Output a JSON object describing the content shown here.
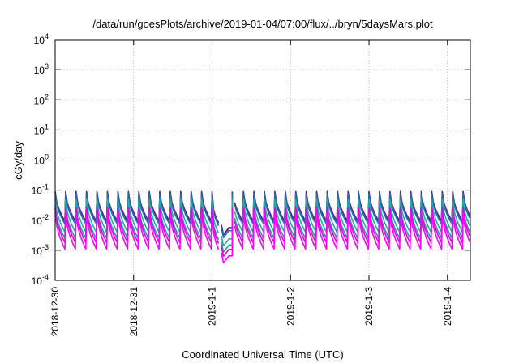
{
  "chart_data": {
    "type": "line",
    "title": "/data/run/goesPlots/archive/2019-01-04/07:00/flux/../bryn/5daysMars.plot",
    "xlabel": "Coordinated Universal Time (UTC)",
    "ylabel": "cGy/day",
    "yscale": "log",
    "ylim": [
      0.0001,
      10000
    ],
    "yticks": [
      {
        "base": "10",
        "exp": "4"
      },
      {
        "base": "10",
        "exp": "3"
      },
      {
        "base": "10",
        "exp": "2"
      },
      {
        "base": "10",
        "exp": "1"
      },
      {
        "base": "10",
        "exp": "0"
      },
      {
        "base": "10",
        "exp": "-1"
      },
      {
        "base": "10",
        "exp": "-2"
      },
      {
        "base": "10",
        "exp": "-3"
      },
      {
        "base": "10",
        "exp": "-4"
      }
    ],
    "xlim": [
      "2018-12-30",
      "2019-01-04 07:00"
    ],
    "xticks": [
      "2018-12-30",
      "2018-12-31",
      "2019-1-1",
      "2019-1-2",
      "2019-1-3",
      "2019-1-4"
    ],
    "grid": true,
    "legend": "none",
    "pattern": {
      "period_hours": 3.2,
      "gap": {
        "start": "2019-01-01 02:20",
        "end": "2019-01-01 06:40"
      }
    },
    "series": [
      {
        "color": "#cc0000",
        "peak": 0.09,
        "trough": 0.0095
      },
      {
        "color": "#3a3aa8",
        "peak": 0.085,
        "trough": 0.009
      },
      {
        "color": "#1f6fb4",
        "peak": 0.075,
        "trough": 0.0075
      },
      {
        "color": "#2aa9a3",
        "peak": 0.05,
        "trough": 0.004
      },
      {
        "color": "#1c9fa7",
        "peak": 0.03,
        "trough": 0.0025
      },
      {
        "color": "#e000e0",
        "peak": 0.025,
        "trough": 0.0018
      },
      {
        "color": "#ff00ff",
        "peak": 0.018,
        "trough": 0.0011
      }
    ]
  }
}
